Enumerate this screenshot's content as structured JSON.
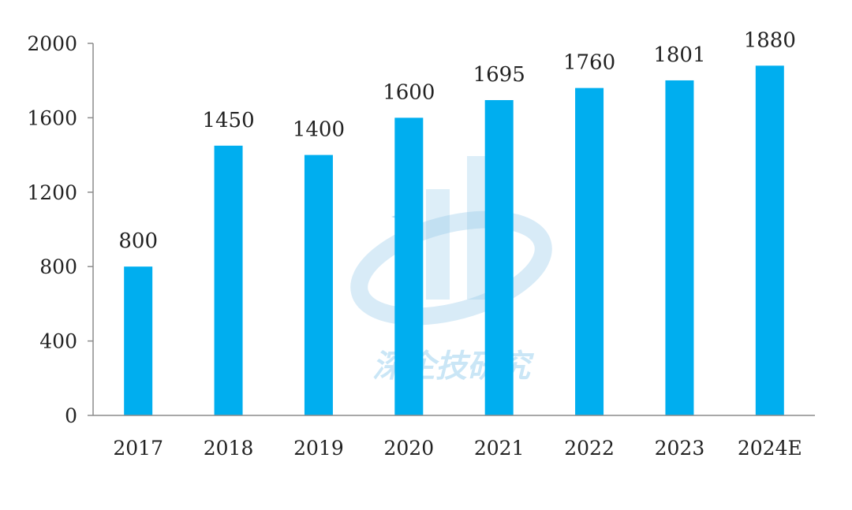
{
  "chart_data": {
    "type": "bar",
    "title": "",
    "xlabel": "",
    "ylabel": "",
    "categories": [
      "2017",
      "2018",
      "2019",
      "2020",
      "2021",
      "2022",
      "2023",
      "2024E"
    ],
    "values": [
      800,
      1450,
      1400,
      1600,
      1695,
      1760,
      1801,
      1880
    ],
    "ylim": [
      0,
      2000
    ],
    "yticks": [
      0,
      400,
      800,
      1200,
      1600,
      2000
    ],
    "grid": false,
    "legend": "none",
    "data_labels": true,
    "bar_color": "#00AEEF"
  },
  "watermark": {
    "text": "深企技研究",
    "color": "#9fd3ef"
  }
}
